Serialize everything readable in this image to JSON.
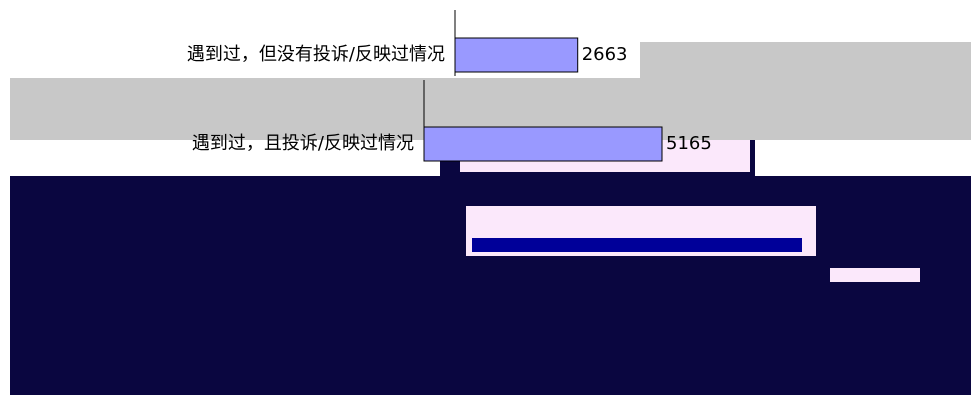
{
  "chart_data": {
    "type": "bar",
    "orientation": "horizontal",
    "categories": [
      "遇到过，但没有投诉/反映过情况",
      "遇到过，且投诉/反映过情况"
    ],
    "values": [
      2663,
      5165
    ],
    "color": "#9999ff"
  }
}
